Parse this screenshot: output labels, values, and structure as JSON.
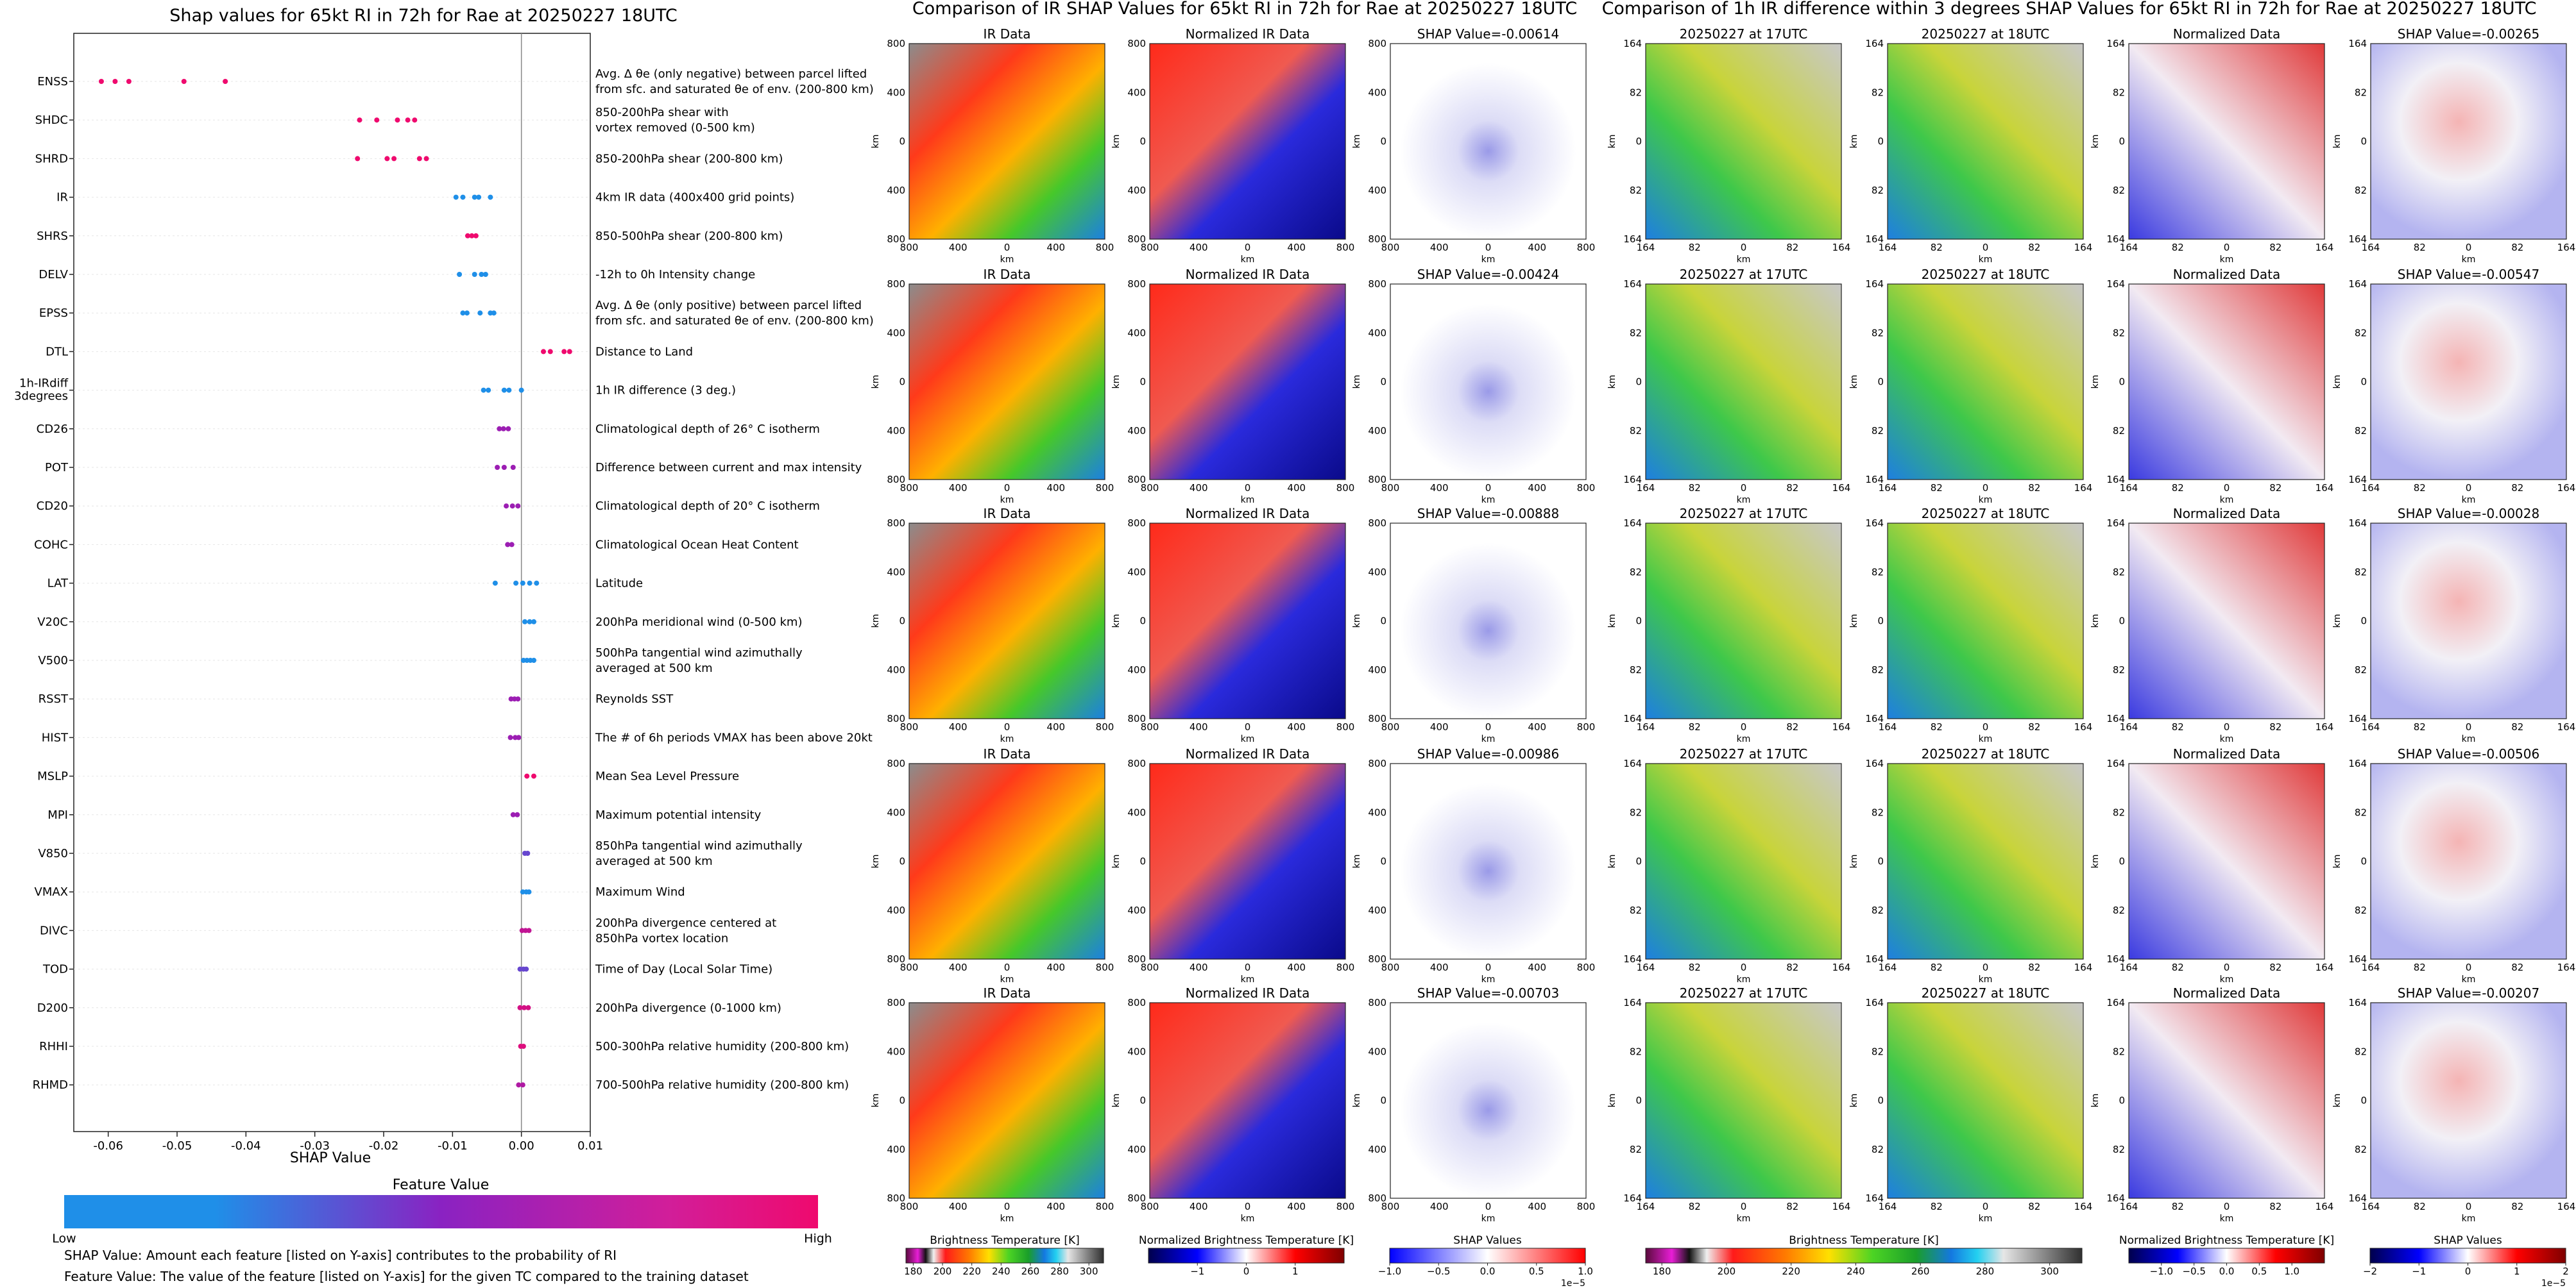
{
  "titles": {
    "shap": "Shap values for 65kt RI in 72h for Rae at 20250227 18UTC",
    "ir": "Comparison of IR SHAP Values for 65kt RI in 72h for Rae at 20250227 18UTC",
    "diff": "Comparison of 1h IR difference within 3 degrees SHAP Values for 65kt RI in 72h for Rae at 20250227 18UTC"
  },
  "colors": {
    "low": "#1f8fe8",
    "high": "#ef0a6e",
    "axis": "#222222"
  },
  "chart_data": [
    {
      "type": "scatter",
      "title": "Shap values for 65kt RI in 72h for Rae at 20250227 18UTC",
      "xlabel": "SHAP Value",
      "xlim": [
        -0.065,
        0.01
      ],
      "xticks": [
        "-0.06",
        "-0.05",
        "-0.04",
        "-0.03",
        "-0.02",
        "-0.01",
        "0.00",
        "0.01"
      ],
      "xtick_values": [
        -0.06,
        -0.05,
        -0.04,
        -0.03,
        -0.02,
        -0.01,
        0.0,
        0.01
      ],
      "colorbar": {
        "title": "Feature Value",
        "low": "Low",
        "high": "High"
      },
      "features": [
        {
          "code": "ENSS",
          "desc": [
            "Avg. Δ θe (only negative) between parcel lifted",
            "from sfc. and saturated θe of env. (200-800 km)"
          ],
          "values": [
            -0.061,
            -0.059,
            -0.057,
            -0.049,
            -0.043
          ],
          "fv": [
            1,
            1,
            1,
            1,
            1
          ]
        },
        {
          "code": "SHDC",
          "desc": [
            "850-200hPa shear with",
            "vortex removed (0-500 km)"
          ],
          "values": [
            -0.0235,
            -0.021,
            -0.018,
            -0.0165,
            -0.0155
          ],
          "fv": [
            1,
            1,
            1,
            1,
            1
          ]
        },
        {
          "code": "SHRD",
          "desc": [
            "850-200hPa shear (200-800 km)"
          ],
          "values": [
            -0.0238,
            -0.0195,
            -0.0185,
            -0.0148,
            -0.0138
          ],
          "fv": [
            1,
            1,
            1,
            1,
            1
          ]
        },
        {
          "code": "IR",
          "desc": [
            "4km IR data (400x400 grid points)"
          ],
          "values": [
            -0.0095,
            -0.0085,
            -0.0068,
            -0.0062,
            -0.0045
          ],
          "fv": [
            0,
            0,
            0,
            0,
            0
          ]
        },
        {
          "code": "SHRS",
          "desc": [
            "850-500hPa shear (200-800 km)"
          ],
          "values": [
            -0.0078,
            -0.0072,
            -0.0066
          ],
          "fv": [
            1,
            1,
            1
          ]
        },
        {
          "code": "DELV",
          "desc": [
            "-12h to 0h Intensity change"
          ],
          "values": [
            -0.009,
            -0.0068,
            -0.0058,
            -0.0052
          ],
          "fv": [
            0,
            0,
            0,
            0
          ]
        },
        {
          "code": "EPSS",
          "desc": [
            "Avg. Δ θe (only positive) between parcel lifted",
            "from sfc. and saturated θe of env. (200-800 km)"
          ],
          "values": [
            -0.0085,
            -0.0079,
            -0.006,
            -0.0045,
            -0.004
          ],
          "fv": [
            0,
            0,
            0,
            0,
            0
          ]
        },
        {
          "code": "DTL",
          "desc": [
            "Distance to Land"
          ],
          "values": [
            0.0032,
            0.0042,
            0.0062,
            0.007
          ],
          "fv": [
            1,
            1,
            1,
            1
          ]
        },
        {
          "code": "1h-IRdiff 3degrees",
          "desc": [
            "1h IR difference (3 deg.)"
          ],
          "values": [
            -0.0055,
            -0.0048,
            -0.0025,
            -0.0018,
            0.0
          ],
          "fv": [
            0,
            0,
            0,
            0,
            0
          ]
        },
        {
          "code": "CD26",
          "desc": [
            "Climatological depth of 26° C isotherm"
          ],
          "values": [
            -0.0032,
            -0.0026,
            -0.0019
          ],
          "fv": [
            0.55,
            0.55,
            0.55
          ]
        },
        {
          "code": "POT",
          "desc": [
            "Difference between current and max intensity"
          ],
          "values": [
            -0.0035,
            -0.0025,
            -0.0012
          ],
          "fv": [
            0.55,
            0.55,
            0.55
          ]
        },
        {
          "code": "CD20",
          "desc": [
            "Climatological depth of 20° C isotherm"
          ],
          "values": [
            -0.0022,
            -0.0013,
            -0.0005
          ],
          "fv": [
            0.55,
            0.55,
            0.55
          ]
        },
        {
          "code": "COHC",
          "desc": [
            "Climatological Ocean Heat Content"
          ],
          "values": [
            -0.002,
            -0.0014
          ],
          "fv": [
            0.55,
            0.55
          ]
        },
        {
          "code": "LAT",
          "desc": [
            "Latitude"
          ],
          "values": [
            -0.0038,
            -0.0008,
            0.0002,
            0.0012,
            0.0022
          ],
          "fv": [
            0,
            0,
            0,
            0,
            0
          ]
        },
        {
          "code": "V20C",
          "desc": [
            "200hPa meridional wind (0-500 km)"
          ],
          "values": [
            0.0005,
            0.0012,
            0.0018
          ],
          "fv": [
            0,
            0,
            0
          ]
        },
        {
          "code": "V500",
          "desc": [
            "500hPa tangential wind azimuthally",
            "averaged at 500 km"
          ],
          "values": [
            0.0003,
            0.0008,
            0.0013,
            0.0018
          ],
          "fv": [
            0,
            0,
            0,
            0
          ]
        },
        {
          "code": "RSST",
          "desc": [
            "Reynolds SST"
          ],
          "values": [
            -0.0015,
            -0.001,
            -0.0005
          ],
          "fv": [
            0.55,
            0.55,
            0.55
          ]
        },
        {
          "code": "HIST",
          "desc": [
            "The # of 6h periods VMAX has been above 20kt"
          ],
          "values": [
            -0.0016,
            -0.0009,
            -0.0004
          ],
          "fv": [
            0.55,
            0.55,
            0.55
          ]
        },
        {
          "code": "MSLP",
          "desc": [
            "Mean Sea Level Pressure"
          ],
          "values": [
            0.0008,
            0.0018
          ],
          "fv": [
            1,
            1
          ]
        },
        {
          "code": "MPI",
          "desc": [
            "Maximum potential intensity"
          ],
          "values": [
            -0.0012,
            -0.0006
          ],
          "fv": [
            0.55,
            0.55
          ]
        },
        {
          "code": "V850",
          "desc": [
            "850hPa tangential wind azimuthally",
            "averaged at 500 km"
          ],
          "values": [
            0.0005,
            0.0009
          ],
          "fv": [
            0.3,
            0.3
          ]
        },
        {
          "code": "VMAX",
          "desc": [
            "Maximum Wind"
          ],
          "values": [
            0.0002,
            0.0007,
            0.0011
          ],
          "fv": [
            0,
            0,
            0
          ]
        },
        {
          "code": "DIVC",
          "desc": [
            "200hPa divergence centered at",
            "850hPa vortex location"
          ],
          "values": [
            0.0001,
            0.0006,
            0.0011
          ],
          "fv": [
            0.75,
            0.75,
            0.75
          ]
        },
        {
          "code": "TOD",
          "desc": [
            "Time of Day (Local Solar Time)"
          ],
          "values": [
            -0.0002,
            0.0003,
            0.0007
          ],
          "fv": [
            0.3,
            0.3,
            0.3
          ]
        },
        {
          "code": "D200",
          "desc": [
            "200hPa divergence (0-1000 km)"
          ],
          "values": [
            -0.0002,
            0.0004,
            0.001
          ],
          "fv": [
            0.85,
            0.85,
            0.85
          ]
        },
        {
          "code": "RHHI",
          "desc": [
            "500-300hPa relative humidity (200-800 km)"
          ],
          "values": [
            -0.0001,
            0.0003
          ],
          "fv": [
            0.9,
            0.9
          ]
        },
        {
          "code": "RHMD",
          "desc": [
            "700-500hPa relative humidity (200-800 km)"
          ],
          "values": [
            -0.0004,
            0.0002
          ],
          "fv": [
            0.65,
            0.65
          ]
        }
      ],
      "footnotes": [
        "SHAP Value: Amount each feature [listed on Y-axis] contributes to the probability of RI",
        "Feature Value: The value of the feature [listed on Y-axis] for the given TC compared to the training dataset"
      ]
    },
    {
      "type": "heatmap",
      "title": "Comparison of IR SHAP Values for 65kt RI in 72h for Rae at 20250227 18UTC",
      "columns": [
        "IR Data",
        "Normalized IR Data",
        "SHAP"
      ],
      "shap_titles": [
        "SHAP Value=-0.00614",
        "SHAP Value=-0.00424",
        "SHAP Value=-0.00888",
        "SHAP Value=-0.00986",
        "SHAP Value=-0.00703"
      ],
      "xticks": [
        "800",
        "400",
        "0",
        "400",
        "800"
      ],
      "yticks": [
        "800",
        "400",
        "0",
        "400",
        "800"
      ],
      "axis_label": "km",
      "colorbars": [
        {
          "label": "Brightness Temperature [K]",
          "ticks": [
            "180",
            "200",
            "220",
            "240",
            "260",
            "280",
            "300"
          ],
          "range": [
            175,
            310
          ]
        },
        {
          "label": "Normalized Brightness Temperature [K]",
          "ticks": [
            "−1",
            "0",
            "1"
          ],
          "range": [
            -2,
            2
          ]
        },
        {
          "label": "SHAP Values",
          "ticks": [
            "−1.0",
            "−0.5",
            "0.0",
            "0.5",
            "1.0"
          ],
          "range": [
            -1,
            1
          ],
          "exponent": "1e−5"
        }
      ]
    },
    {
      "type": "heatmap",
      "title": "Comparison of 1h IR difference within 3 degrees SHAP Values for 65kt RI in 72h for Rae at 20250227 18UTC",
      "columns": [
        "20250227 at 17UTC",
        "20250227 at 18UTC",
        "Normalized Data",
        "SHAP"
      ],
      "shap_titles": [
        "SHAP Value=-0.00265",
        "SHAP Value=-0.00547",
        "SHAP Value=-0.00028",
        "SHAP Value=-0.00506",
        "SHAP Value=-0.00207"
      ],
      "xticks": [
        "164",
        "82",
        "0",
        "82",
        "164"
      ],
      "yticks": [
        "164",
        "82",
        "0",
        "82",
        "164"
      ],
      "axis_label": "km",
      "colorbars": [
        {
          "label": "Brightness Temperature [K]",
          "ticks": [
            "180",
            "200",
            "220",
            "240",
            "260",
            "280",
            "300"
          ],
          "range": [
            175,
            310
          ]
        },
        {
          "label": "Normalized Brightness Temperature [K]",
          "ticks": [
            "−1.0",
            "−0.5",
            "0.0",
            "0.5",
            "1.0"
          ],
          "range": [
            -1.5,
            1.5
          ]
        },
        {
          "label": "SHAP Values",
          "ticks": [
            "−2",
            "−1",
            "0",
            "1",
            "2"
          ],
          "range": [
            -2,
            2
          ],
          "exponent": "1e−5"
        }
      ]
    }
  ]
}
